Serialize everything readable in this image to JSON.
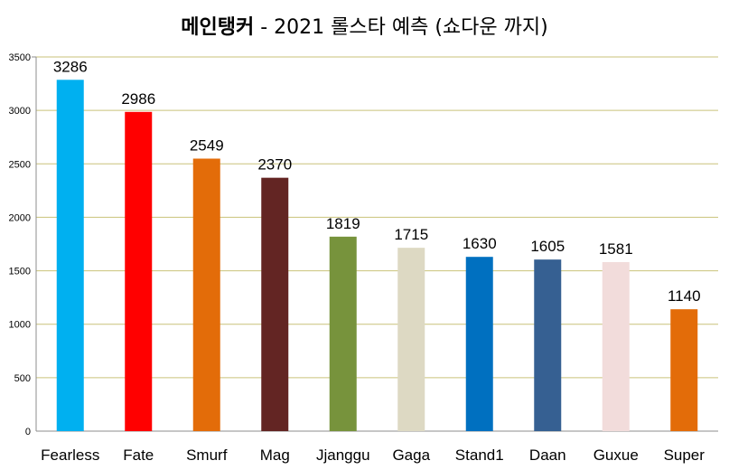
{
  "chart_data": {
    "type": "bar",
    "title_bold": "메인탱커",
    "title_rest": " - 2021 롤스타 예측 (쇼다운 까지)",
    "categories": [
      "Fearless",
      "Fate",
      "Smurf",
      "Mag",
      "Jjanggu",
      "Gaga",
      "Stand1",
      "Daan",
      "Guxue",
      "Super"
    ],
    "values": [
      3286,
      2986,
      2549,
      2370,
      1819,
      1715,
      1630,
      1605,
      1581,
      1140
    ],
    "colors": [
      "#00b0f0",
      "#ff0000",
      "#e36c09",
      "#632523",
      "#77933c",
      "#ddd9c3",
      "#0070c0",
      "#366092",
      "#f2dcdb",
      "#e36c09"
    ],
    "ylim": [
      0,
      3500
    ],
    "yticks": [
      0,
      500,
      1000,
      1500,
      2000,
      2500,
      3000,
      3500
    ],
    "grid": true,
    "gridColor": "#c9c27a",
    "xlabel": "",
    "ylabel": ""
  }
}
